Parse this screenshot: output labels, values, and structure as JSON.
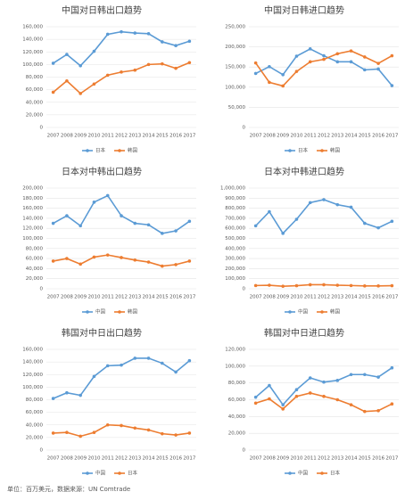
{
  "chart_data": [
    {
      "type": "line",
      "title": "中国对日韩出口趋势",
      "categories": [
        "2007",
        "2008",
        "2009",
        "2010",
        "2011",
        "2012",
        "2013",
        "2014",
        "2015",
        "2016",
        "2017"
      ],
      "series": [
        {
          "name": "日本",
          "color": "#5b9bd5",
          "values": [
            102000,
            116000,
            98000,
            121000,
            148000,
            152000,
            150000,
            149000,
            136000,
            130000,
            137000
          ]
        },
        {
          "name": "韩国",
          "color": "#ed7d31",
          "values": [
            56000,
            74000,
            54000,
            69000,
            83000,
            88000,
            91000,
            100000,
            101000,
            94000,
            103000
          ]
        }
      ],
      "ylim": [
        0,
        160000
      ],
      "yticks": [
        0,
        {
          "value": 20000,
          "label": "20,000"
        },
        {
          "value": 40000,
          "label": "40,000"
        },
        {
          "value": 60000,
          "label": "60,000"
        },
        {
          "value": 80000,
          "label": "80,000"
        },
        {
          "value": 100000,
          "label": "100,000"
        },
        {
          "value": 120000,
          "label": "120,000"
        },
        {
          "value": 140000,
          "label": "140,000"
        },
        {
          "value": 160000,
          "label": "160,000"
        }
      ],
      "grid": true
    },
    {
      "type": "line",
      "title": "中国对日韩进口趋势",
      "categories": [
        "2007",
        "2008",
        "2009",
        "2010",
        "2011",
        "2012",
        "2013",
        "2014",
        "2015",
        "2016",
        "2017"
      ],
      "series": [
        {
          "name": "日本",
          "color": "#5b9bd5",
          "values": [
            134000,
            151000,
            131000,
            177000,
            195000,
            178000,
            163000,
            163000,
            143000,
            145000,
            104000
          ]
        },
        {
          "name": "韩国",
          "color": "#ed7d31",
          "values": [
            160000,
            112000,
            103000,
            139000,
            163000,
            169000,
            183000,
            190000,
            175000,
            159000,
            178000
          ]
        }
      ],
      "ylim": [
        0,
        250000
      ],
      "yticks": [
        0,
        {
          "value": 50000,
          "label": "50,000"
        },
        {
          "value": 100000,
          "label": "100,000"
        },
        {
          "value": 150000,
          "label": "150,000"
        },
        {
          "value": 200000,
          "label": "200,000"
        },
        {
          "value": 250000,
          "label": "250,000"
        }
      ],
      "grid": true
    },
    {
      "type": "line",
      "title": "日本对中韩出口趋势",
      "categories": [
        "2007",
        "2008",
        "2009",
        "2010",
        "2011",
        "2012",
        "2013",
        "2014",
        "2015",
        "2016",
        "2017"
      ],
      "series": [
        {
          "name": "中国",
          "color": "#5b9bd5",
          "values": [
            130000,
            145000,
            125000,
            172000,
            185000,
            145000,
            130000,
            127000,
            110000,
            115000,
            134000
          ]
        },
        {
          "name": "韩国",
          "color": "#ed7d31",
          "values": [
            55000,
            60000,
            49000,
            63000,
            67000,
            62000,
            57000,
            53000,
            45000,
            48000,
            55000
          ]
        }
      ],
      "ylim": [
        0,
        200000
      ],
      "yticks": [
        0,
        {
          "value": 20000,
          "label": "20,000"
        },
        {
          "value": 40000,
          "label": "40,000"
        },
        {
          "value": 60000,
          "label": "60,000"
        },
        {
          "value": 80000,
          "label": "80,000"
        },
        {
          "value": 100000,
          "label": "100,000"
        },
        {
          "value": 120000,
          "label": "120,000"
        },
        {
          "value": 140000,
          "label": "140,000"
        },
        {
          "value": 160000,
          "label": "160,000"
        },
        {
          "value": 180000,
          "label": "180,000"
        },
        {
          "value": 200000,
          "label": "200,000"
        }
      ],
      "grid": true
    },
    {
      "type": "line",
      "title": "日本对中韩进口趋势",
      "categories": [
        "2007",
        "2008",
        "2009",
        "2010",
        "2011",
        "2012",
        "2013",
        "2014",
        "2015",
        "2016",
        "2017"
      ],
      "series": [
        {
          "name": "中国",
          "color": "#5b9bd5",
          "values": [
            625000,
            765000,
            550000,
            690000,
            855000,
            885000,
            835000,
            810000,
            650000,
            605000,
            670000
          ]
        },
        {
          "name": "韩国",
          "color": "#ed7d31",
          "values": [
            32000,
            35000,
            25000,
            30000,
            40000,
            40000,
            35000,
            32000,
            28000,
            28000,
            30000
          ]
        }
      ],
      "ylim": [
        0,
        1000000
      ],
      "yticks": [
        0,
        {
          "value": 100000,
          "label": "100,000"
        },
        {
          "value": 200000,
          "label": "200,000"
        },
        {
          "value": 300000,
          "label": "300,000"
        },
        {
          "value": 400000,
          "label": "400,000"
        },
        {
          "value": 500000,
          "label": "500,000"
        },
        {
          "value": 600000,
          "label": "600,000"
        },
        {
          "value": 700000,
          "label": "700,000"
        },
        {
          "value": 800000,
          "label": "800,000"
        },
        {
          "value": 900000,
          "label": "900,000"
        },
        {
          "value": 1000000,
          "label": "1,000,000"
        }
      ],
      "grid": true
    },
    {
      "type": "line",
      "title": "韩国对中日出口趋势",
      "categories": [
        "2007",
        "2008",
        "2009",
        "2010",
        "2011",
        "2012",
        "2013",
        "2014",
        "2015",
        "2016",
        "2017"
      ],
      "series": [
        {
          "name": "中国",
          "color": "#5b9bd5",
          "values": [
            82000,
            91000,
            87000,
            117000,
            134000,
            135000,
            146000,
            146000,
            138000,
            124000,
            142000
          ]
        },
        {
          "name": "日本",
          "color": "#ed7d31",
          "values": [
            27000,
            28000,
            22000,
            28000,
            40000,
            39000,
            35000,
            32000,
            26000,
            24000,
            27000
          ]
        }
      ],
      "ylim": [
        0,
        160000
      ],
      "yticks": [
        0,
        {
          "value": 20000,
          "label": "20,000"
        },
        {
          "value": 40000,
          "label": "40,000"
        },
        {
          "value": 60000,
          "label": "60,000"
        },
        {
          "value": 80000,
          "label": "80,000"
        },
        {
          "value": 100000,
          "label": "100,000"
        },
        {
          "value": 120000,
          "label": "120,000"
        },
        {
          "value": 140000,
          "label": "140,000"
        },
        {
          "value": 160000,
          "label": "160,000"
        }
      ],
      "grid": true
    },
    {
      "type": "line",
      "title": "韩国对中日进口趋势",
      "categories": [
        "2007",
        "2008",
        "2009",
        "2010",
        "2011",
        "2012",
        "2013",
        "2014",
        "2015",
        "2016",
        "2017"
      ],
      "series": [
        {
          "name": "中国",
          "color": "#5b9bd5",
          "values": [
            63000,
            77000,
            54000,
            72000,
            86000,
            81000,
            83000,
            90000,
            90000,
            87000,
            98000
          ]
        },
        {
          "name": "日本",
          "color": "#ed7d31",
          "values": [
            56000,
            61000,
            49000,
            64000,
            68000,
            64000,
            60000,
            54000,
            46000,
            47000,
            55000
          ]
        }
      ],
      "ylim": [
        0,
        120000
      ],
      "yticks": [
        0,
        {
          "value": 20000,
          "label": "20,000"
        },
        {
          "value": 40000,
          "label": "40,000"
        },
        {
          "value": 60000,
          "label": "60,000"
        },
        {
          "value": 80000,
          "label": "80,000"
        },
        {
          "value": 100000,
          "label": "100,000"
        },
        {
          "value": 120000,
          "label": "120,000"
        }
      ],
      "grid": true
    }
  ],
  "source": "单位：百万美元，数据来源：UN Comtrade"
}
